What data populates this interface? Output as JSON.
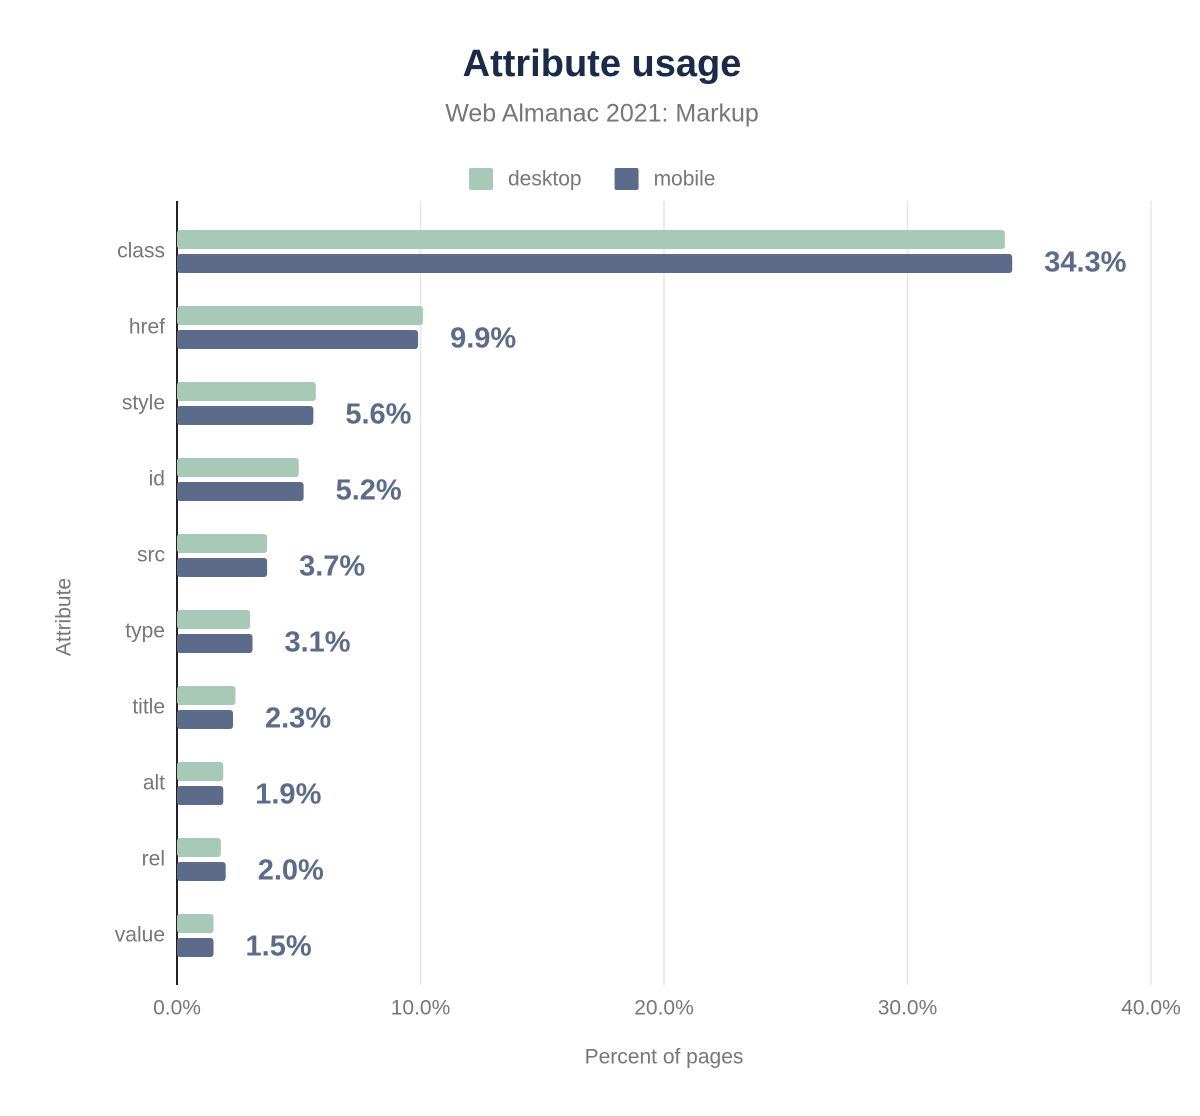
{
  "chart_data": {
    "type": "bar",
    "orientation": "horizontal",
    "title": "Attribute usage",
    "subtitle": "Web Almanac 2021: Markup",
    "x_label": "Percent of pages",
    "y_label": "Attribute",
    "categories": [
      "class",
      "href",
      "style",
      "id",
      "src",
      "type",
      "title",
      "alt",
      "rel",
      "value"
    ],
    "series": [
      {
        "name": "desktop",
        "color": "#a8c9b8",
        "values": [
          34.0,
          10.1,
          5.7,
          5.0,
          3.7,
          3.0,
          2.4,
          1.9,
          1.8,
          1.5
        ]
      },
      {
        "name": "mobile",
        "color": "#5c6b89",
        "values": [
          34.3,
          9.9,
          5.6,
          5.2,
          3.7,
          3.1,
          2.3,
          1.9,
          2.0,
          1.5
        ],
        "value_labels": [
          "34.3%",
          "9.9%",
          "5.6%",
          "5.2%",
          "3.7%",
          "3.1%",
          "2.3%",
          "1.9%",
          "2.0%",
          "1.5%"
        ]
      }
    ],
    "xlim": [
      0,
      40
    ],
    "xticks": [
      {
        "value": 0,
        "label": "0.0%"
      },
      {
        "value": 10,
        "label": "10.0%"
      },
      {
        "value": 20,
        "label": "20.0%"
      },
      {
        "value": 30,
        "label": "30.0%"
      },
      {
        "value": 40,
        "label": "40.0%"
      }
    ],
    "grid": true,
    "legend": "top"
  }
}
